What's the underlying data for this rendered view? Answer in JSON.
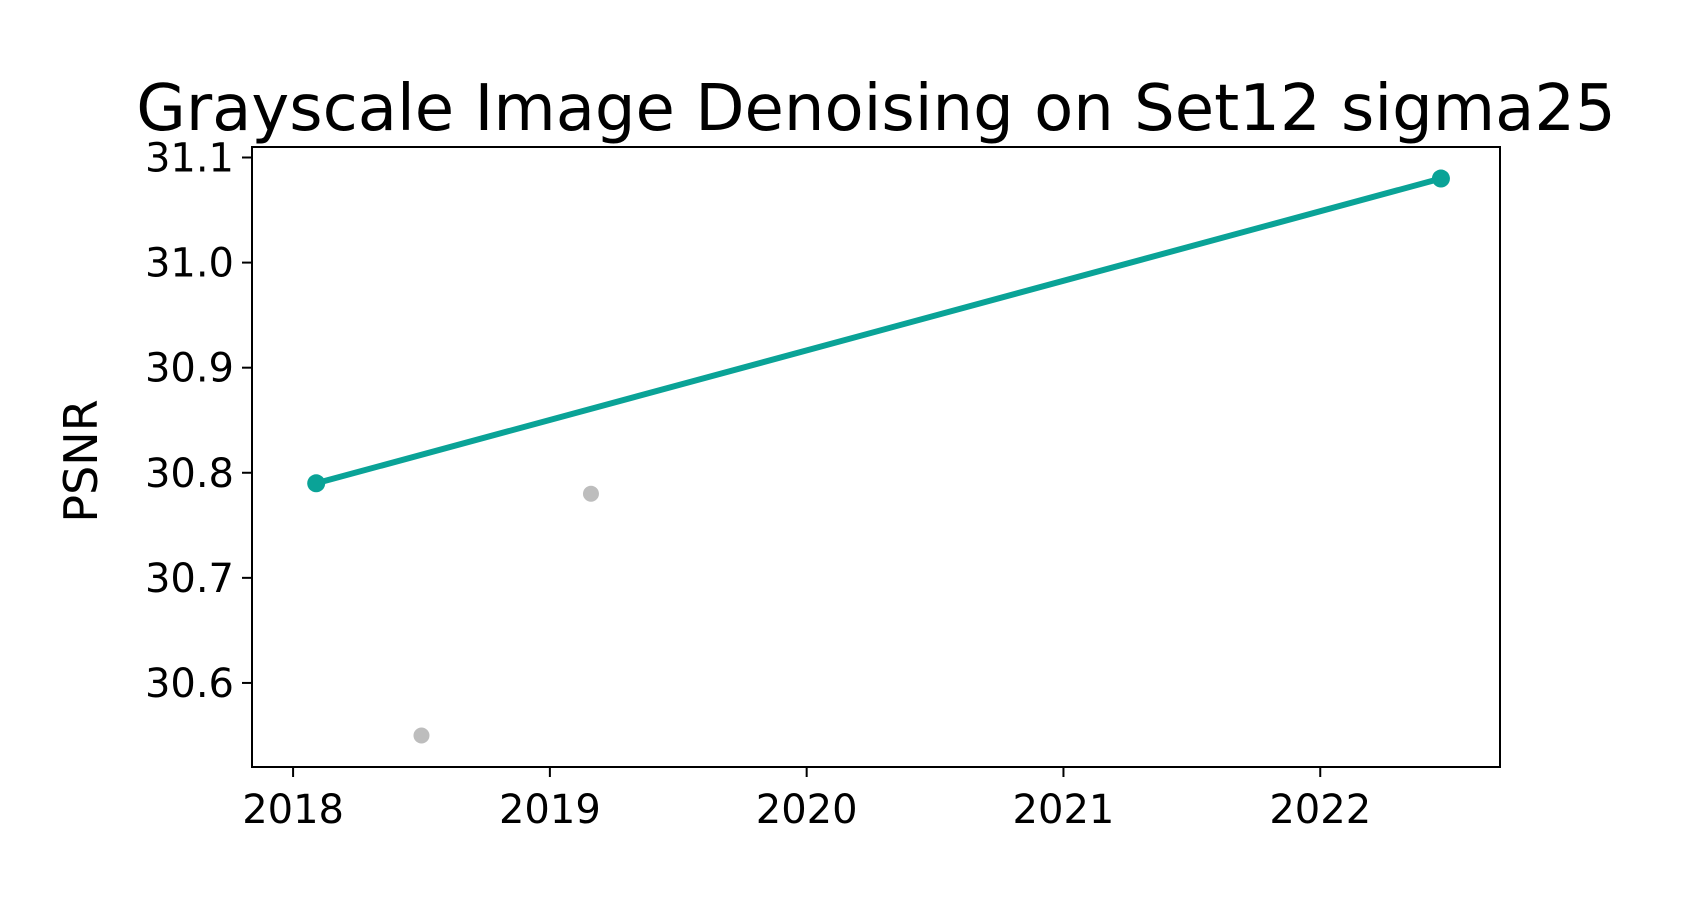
{
  "chart_data": {
    "type": "line",
    "title": "Grayscale Image Denoising on Set12 sigma25",
    "xlabel": "",
    "ylabel": "PSNR",
    "xlim": [
      2017.84,
      2022.7
    ],
    "ylim": [
      30.52,
      31.11
    ],
    "x_ticks": [
      2018,
      2019,
      2020,
      2021,
      2022
    ],
    "y_ticks": [
      30.6,
      30.7,
      30.8,
      30.9,
      31.0,
      31.1
    ],
    "x_tick_labels": [
      "2018",
      "2019",
      "2020",
      "2021",
      "2022"
    ],
    "y_tick_labels": [
      "30.6",
      "30.7",
      "30.8",
      "30.9",
      "31.0",
      "31.1"
    ],
    "grid": false,
    "series": [
      {
        "kind": "line",
        "color": "#0aa397",
        "points": [
          {
            "x": 2018.09,
            "y": 30.79
          },
          {
            "x": 2022.47,
            "y": 31.08
          }
        ]
      },
      {
        "kind": "scatter",
        "color": "#bdbdbd",
        "points": [
          {
            "x": 2018.5,
            "y": 30.55
          },
          {
            "x": 2019.16,
            "y": 30.78
          }
        ]
      }
    ]
  }
}
